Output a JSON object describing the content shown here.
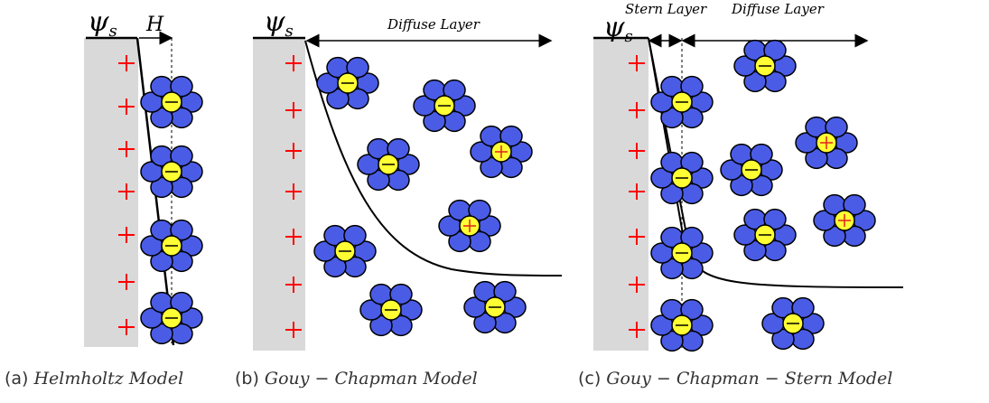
{
  "panels": [
    {
      "psi": "ψ",
      "psi_sub": "s",
      "width_label": "H",
      "caption_prefix": "(a)",
      "caption": "Helmholtz Model"
    },
    {
      "psi": "ψ",
      "psi_sub": "s",
      "layer_label": "Diffuse Layer",
      "caption_prefix": "(b)",
      "caption": "Gouy − Chapman Model"
    },
    {
      "psi": "ψ",
      "psi_sub": "s",
      "stern_label": "Stern Layer",
      "layer_label": "Diffuse Layer",
      "caption_prefix": "(c)",
      "caption": "Gouy − Chapman − Stern Model"
    }
  ]
}
